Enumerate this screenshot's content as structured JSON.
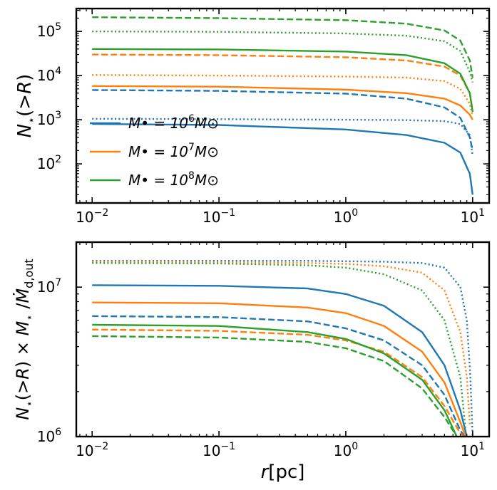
{
  "chart_data": [
    {
      "type": "line",
      "panel": "top",
      "xscale": "log",
      "yscale": "log",
      "xlim": [
        0.0075,
        13.5
      ],
      "ylim": [
        13,
        330000
      ],
      "xlabel": "",
      "ylabel": "N_⋆(>R)",
      "x_ticks": [
        0.01,
        0.1,
        1,
        10
      ],
      "x_tick_labels": [
        {
          "base": "10",
          "exp": "−2"
        },
        {
          "base": "10",
          "exp": "−1"
        },
        {
          "base": "10",
          "exp": "0"
        },
        {
          "base": "10",
          "exp": "1"
        }
      ],
      "y_ticks": [
        100,
        1000,
        10000,
        100000
      ],
      "y_tick_labels": [
        {
          "base": "10",
          "exp": "2"
        },
        {
          "base": "10",
          "exp": "3"
        },
        {
          "base": "10",
          "exp": "4"
        },
        {
          "base": "10",
          "exp": "5"
        }
      ],
      "legend": {
        "placement": "lower-left",
        "entries": [
          {
            "label_base": "M• = 10",
            "exp": "6",
            "suffix": "M⊙",
            "color": "#1f77b4"
          },
          {
            "label_base": "M• = 10",
            "exp": "7",
            "suffix": "M⊙",
            "color": "#ff7f0e"
          },
          {
            "label_base": "M• = 10",
            "exp": "8",
            "suffix": "M⊙",
            "color": "#2ca02c"
          }
        ]
      },
      "series": [
        {
          "color": "#1f77b4",
          "style": "solid",
          "x": [
            0.01,
            0.1,
            1,
            3,
            6,
            8,
            9.5,
            10
          ],
          "y": [
            800,
            760,
            600,
            450,
            300,
            180,
            60,
            20
          ]
        },
        {
          "color": "#1f77b4",
          "style": "dashed",
          "x": [
            0.01,
            0.1,
            1,
            3,
            6,
            8,
            9.5,
            10
          ],
          "y": [
            4700,
            4500,
            3900,
            3000,
            1900,
            1100,
            400,
            200
          ]
        },
        {
          "color": "#1f77b4",
          "style": "dotted",
          "x": [
            0.01,
            0.1,
            1,
            3,
            6,
            8,
            9.5,
            10
          ],
          "y": [
            1050,
            1030,
            1000,
            980,
            930,
            800,
            450,
            150
          ]
        },
        {
          "color": "#ff7f0e",
          "style": "solid",
          "x": [
            0.01,
            0.1,
            1,
            3,
            6,
            8,
            9.5,
            10
          ],
          "y": [
            5800,
            5600,
            4800,
            4000,
            3000,
            2100,
            1300,
            1000
          ]
        },
        {
          "color": "#ff7f0e",
          "style": "dashed",
          "x": [
            0.01,
            0.1,
            1,
            3,
            6,
            8,
            9.5,
            10
          ],
          "y": [
            30000,
            29000,
            26000,
            22000,
            16000,
            10000,
            4000,
            1600
          ]
        },
        {
          "color": "#ff7f0e",
          "style": "dotted",
          "x": [
            0.01,
            0.1,
            1,
            3,
            6,
            8,
            9.5,
            10
          ],
          "y": [
            10300,
            10000,
            9500,
            9000,
            7500,
            5000,
            2300,
            1200
          ]
        },
        {
          "color": "#2ca02c",
          "style": "solid",
          "x": [
            0.01,
            0.1,
            1,
            3,
            6,
            8,
            9.5,
            10
          ],
          "y": [
            40000,
            39000,
            35000,
            29000,
            19000,
            11000,
            4000,
            1500
          ]
        },
        {
          "color": "#2ca02c",
          "style": "dashed",
          "x": [
            0.01,
            0.1,
            1,
            3,
            6,
            8,
            9.5,
            10
          ],
          "y": [
            210000,
            200000,
            180000,
            150000,
            105000,
            62000,
            22000,
            9000
          ]
        },
        {
          "color": "#2ca02c",
          "style": "dotted",
          "x": [
            0.01,
            0.1,
            1,
            3,
            6,
            8,
            9.5,
            10
          ],
          "y": [
            100000,
            98000,
            90000,
            80000,
            60000,
            36000,
            12000,
            7000
          ]
        }
      ]
    },
    {
      "type": "line",
      "panel": "bottom",
      "xscale": "log",
      "yscale": "log",
      "xlim": [
        0.0075,
        13.5
      ],
      "ylim": [
        1000000,
        20000000
      ],
      "xlabel_base": "r",
      "xlabel_unit": "[pc]",
      "ylabel": "N_⋆(>R) × M_⋆ / Ṁ_d,out",
      "x_ticks": [
        0.01,
        0.1,
        1,
        10
      ],
      "x_tick_labels": [
        {
          "base": "10",
          "exp": "−2"
        },
        {
          "base": "10",
          "exp": "−1"
        },
        {
          "base": "10",
          "exp": "0"
        },
        {
          "base": "10",
          "exp": "1"
        }
      ],
      "y_ticks": [
        1000000,
        10000000
      ],
      "y_tick_labels": [
        {
          "base": "10",
          "exp": "6"
        },
        {
          "base": "10",
          "exp": "7"
        }
      ],
      "series": [
        {
          "color": "#1f77b4",
          "style": "solid",
          "x": [
            0.01,
            0.1,
            0.5,
            1,
            2,
            4,
            6,
            8,
            9
          ],
          "y": [
            10300000,
            10200000,
            9800000,
            9000000,
            7500000,
            5000000,
            3000000,
            1500000,
            1000000
          ]
        },
        {
          "color": "#1f77b4",
          "style": "dashed",
          "x": [
            0.01,
            0.1,
            0.5,
            1,
            2,
            4,
            6,
            8,
            9
          ],
          "y": [
            6400000,
            6300000,
            5900000,
            5300000,
            4400000,
            3000000,
            1900000,
            1100000,
            950000
          ]
        },
        {
          "color": "#1f77b4",
          "style": "dotted",
          "x": [
            0.01,
            0.1,
            0.5,
            1,
            2,
            4,
            6,
            8,
            9,
            9.6,
            10
          ],
          "y": [
            15000000,
            15000000,
            15000000,
            14900000,
            14800000,
            14500000,
            13500000,
            10000000,
            6000000,
            2500000,
            1000000
          ]
        },
        {
          "color": "#ff7f0e",
          "style": "solid",
          "x": [
            0.01,
            0.1,
            0.5,
            1,
            2,
            4,
            6,
            8,
            9
          ],
          "y": [
            7900000,
            7800000,
            7300000,
            6700000,
            5500000,
            3700000,
            2300000,
            1250000,
            950000
          ]
        },
        {
          "color": "#ff7f0e",
          "style": "dashed",
          "x": [
            0.01,
            0.1,
            0.5,
            1,
            2,
            4,
            6,
            8,
            9
          ],
          "y": [
            5200000,
            5100000,
            4800000,
            4400000,
            3700000,
            2500000,
            1600000,
            1050000,
            950000
          ]
        },
        {
          "color": "#ff7f0e",
          "style": "dotted",
          "x": [
            0.01,
            0.1,
            0.5,
            1,
            2,
            4,
            6,
            8,
            9,
            9.5
          ],
          "y": [
            14800000,
            14700000,
            14500000,
            14300000,
            13800000,
            12500000,
            9500000,
            5000000,
            2500000,
            1200000
          ]
        },
        {
          "color": "#2ca02c",
          "style": "solid",
          "x": [
            0.01,
            0.1,
            0.5,
            1,
            2,
            4,
            6,
            7.5
          ],
          "y": [
            5600000,
            5500000,
            5000000,
            4500000,
            3600000,
            2400000,
            1500000,
            1000000
          ]
        },
        {
          "color": "#2ca02c",
          "style": "dashed",
          "x": [
            0.01,
            0.1,
            0.5,
            1,
            2,
            4,
            6,
            7.5
          ],
          "y": [
            4700000,
            4600000,
            4300000,
            3900000,
            3200000,
            2100000,
            1350000,
            1000000
          ]
        },
        {
          "color": "#2ca02c",
          "style": "dotted",
          "x": [
            0.01,
            0.1,
            0.5,
            1,
            2,
            4,
            6,
            8,
            8.8
          ],
          "y": [
            14500000,
            14400000,
            14000000,
            13500000,
            12200000,
            9500000,
            6000000,
            2500000,
            1100000
          ]
        }
      ]
    }
  ]
}
